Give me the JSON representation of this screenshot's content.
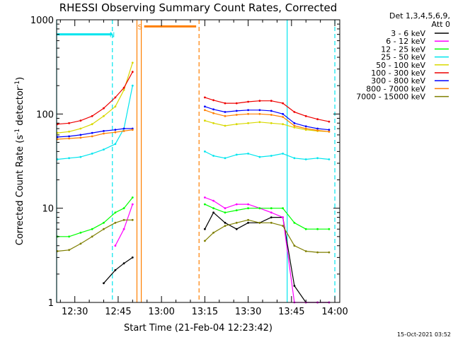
{
  "chart_data": {
    "type": "line",
    "title": "RHESSI Observing Summary Count Rates, Corrected",
    "xlabel": "Start Time (21-Feb-04 12:23:42)",
    "ylabel": "Corrected Count Rate (s-1 detector-1)",
    "ylabel_parts": {
      "main": "Corrected Count Rate (s",
      "sup1": "-1",
      "mid": " detector",
      "sup2": "-1",
      "end": ")"
    },
    "yscale": "log",
    "ylim": [
      1,
      1000
    ],
    "xlim": [
      "12:23:42",
      "14:01:42"
    ],
    "x_ticks": [
      "12:30",
      "12:45",
      "13:00",
      "13:15",
      "13:30",
      "13:45",
      "14:00"
    ],
    "y_ticks": [
      "1",
      "10",
      "100",
      "1000"
    ],
    "legend_header": [
      "Det 1,3,4,5,6,9,",
      "Att 0"
    ],
    "legend_placement": "right",
    "footer": "15-Oct-2021 03:52",
    "annotations": [
      {
        "label": "N",
        "color": "#00e5ee",
        "x_start": "12:23:42",
        "x_end": "12:43:00",
        "y": 700
      },
      {
        "label": "S",
        "color": "#ff7f00",
        "x_start": "12:54:00",
        "x_end": "13:12:00",
        "y": 850
      }
    ],
    "vertical_lines": [
      {
        "x": "12:23:42",
        "color": "#00e5ee",
        "style": "solid"
      },
      {
        "x": "12:43:00",
        "color": "#00e5ee",
        "style": "dashed"
      },
      {
        "x": "12:51:30",
        "color": "#ff7f00",
        "style": "solid"
      },
      {
        "x": "12:53:00",
        "color": "#ff7f00",
        "style": "solid"
      },
      {
        "x": "13:13:00",
        "color": "#ff7f00",
        "style": "dashed"
      },
      {
        "x": "13:43:30",
        "color": "#00e5ee",
        "style": "solid"
      },
      {
        "x": "14:00:00",
        "color": "#00e5ee",
        "style": "dashed"
      }
    ],
    "x": [
      "12:24",
      "12:28",
      "12:32",
      "12:36",
      "12:40",
      "12:44",
      "12:47",
      "12:50",
      "13:15",
      "13:18",
      "13:22",
      "13:26",
      "13:30",
      "13:34",
      "13:38",
      "13:42",
      "13:46",
      "13:50",
      "13:54",
      "13:58"
    ],
    "series": [
      {
        "name": "3 - 6 keV",
        "color": "#000000",
        "values": [
          null,
          null,
          null,
          null,
          1.6,
          2.2,
          2.6,
          3.0,
          6,
          9,
          7,
          6,
          7,
          7,
          8,
          8,
          1.5,
          1,
          1,
          1
        ]
      },
      {
        "name": "6 - 12 keV",
        "color": "#ff00ff",
        "values": [
          null,
          null,
          null,
          null,
          null,
          4,
          6,
          11,
          13,
          12,
          10,
          11,
          11,
          10,
          9,
          8,
          1,
          1,
          1,
          1
        ]
      },
      {
        "name": "12 - 25 keV",
        "color": "#00ff00",
        "values": [
          5,
          5,
          5.5,
          6,
          7,
          9,
          10,
          13,
          11,
          10,
          9,
          9.5,
          10,
          10,
          10,
          10,
          7,
          6,
          6,
          6
        ]
      },
      {
        "name": "25 - 50 keV",
        "color": "#00e5ee",
        "values": [
          33,
          34,
          35,
          38,
          42,
          48,
          70,
          200,
          40,
          36,
          34,
          37,
          38,
          35,
          36,
          38,
          34,
          33,
          34,
          33
        ]
      },
      {
        "name": "50 - 100 keV",
        "color": "#d8d800",
        "values": [
          63,
          65,
          70,
          78,
          95,
          120,
          180,
          350,
          85,
          80,
          75,
          78,
          80,
          82,
          80,
          78,
          72,
          68,
          66,
          65
        ]
      },
      {
        "name": "100 - 300 keV",
        "color": "#ee0000",
        "values": [
          78,
          80,
          85,
          95,
          115,
          150,
          190,
          280,
          150,
          140,
          130,
          130,
          135,
          138,
          138,
          130,
          105,
          95,
          88,
          83
        ]
      },
      {
        "name": "300 - 800 keV",
        "color": "#0000ff",
        "values": [
          57,
          58,
          60,
          63,
          66,
          68,
          70,
          70,
          120,
          112,
          105,
          108,
          110,
          110,
          108,
          100,
          80,
          74,
          70,
          68
        ]
      },
      {
        "name": "800 - 7000 keV",
        "color": "#ff7f00",
        "values": [
          54,
          55,
          56,
          58,
          62,
          64,
          66,
          68,
          110,
          102,
          95,
          98,
          100,
          100,
          98,
          93,
          75,
          70,
          67,
          65
        ]
      },
      {
        "name": "7000 - 15000 keV",
        "color": "#7f7f00",
        "values": [
          3.5,
          3.6,
          4.2,
          5.0,
          6.0,
          7.0,
          7.5,
          7.5,
          4.5,
          5.5,
          6.5,
          7.0,
          7.5,
          7.0,
          7.0,
          6.5,
          4.0,
          3.5,
          3.4,
          3.4
        ]
      }
    ]
  }
}
